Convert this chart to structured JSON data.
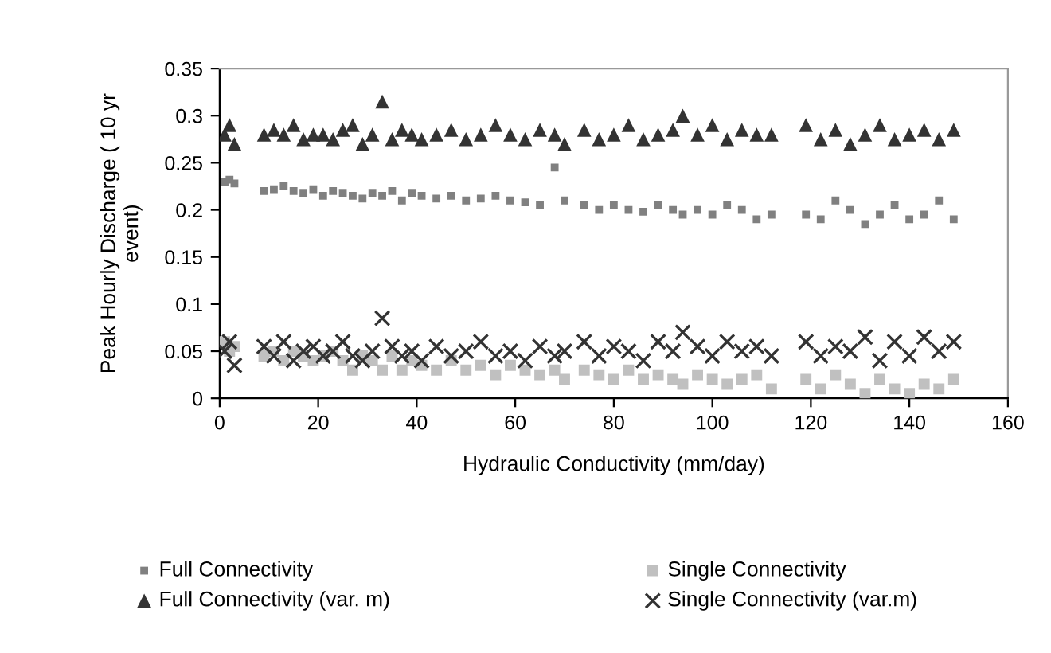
{
  "chart_data": {
    "type": "scatter",
    "xlabel": "Hydraulic Conductivity (mm/day)",
    "ylabel": "Peak Hourly Discharge ( 10 yr\nevent)",
    "x": [
      1,
      2,
      3,
      9,
      11,
      13,
      15,
      17,
      19,
      21,
      23,
      25,
      27,
      29,
      31,
      33,
      35,
      37,
      39,
      41,
      44,
      47,
      50,
      53,
      56,
      59,
      62,
      65,
      68,
      70,
      74,
      77,
      80,
      83,
      86,
      89,
      92,
      94,
      97,
      100,
      103,
      106,
      109,
      112,
      119,
      122,
      125,
      128,
      131,
      134,
      137,
      140,
      143,
      146,
      149
    ],
    "series": [
      {
        "name": "Full Connectivity",
        "color": "#808080",
        "marker": "square",
        "values": [
          0.23,
          0.232,
          0.228,
          0.22,
          0.222,
          0.225,
          0.22,
          0.218,
          0.222,
          0.215,
          0.22,
          0.218,
          0.215,
          0.212,
          0.218,
          0.215,
          0.22,
          0.21,
          0.218,
          0.215,
          0.212,
          0.215,
          0.21,
          0.212,
          0.215,
          0.21,
          0.208,
          0.205,
          0.245,
          0.21,
          0.205,
          0.2,
          0.205,
          0.2,
          0.198,
          0.205,
          0.2,
          0.195,
          0.2,
          0.195,
          0.205,
          0.2,
          0.19,
          0.195,
          0.195,
          0.19,
          0.21,
          0.2,
          0.185,
          0.195,
          0.205,
          0.19,
          0.195,
          0.21,
          0.19
        ]
      },
      {
        "name": "Single Connectivity",
        "color": "#c0c0c0",
        "marker": "square",
        "values": [
          0.06,
          0.05,
          0.055,
          0.045,
          0.05,
          0.04,
          0.05,
          0.045,
          0.04,
          0.045,
          0.05,
          0.04,
          0.03,
          0.045,
          0.04,
          0.03,
          0.045,
          0.03,
          0.04,
          0.035,
          0.03,
          0.04,
          0.03,
          0.035,
          0.025,
          0.035,
          0.03,
          0.025,
          0.03,
          0.02,
          0.03,
          0.025,
          0.02,
          0.03,
          0.02,
          0.025,
          0.02,
          0.015,
          0.025,
          0.02,
          0.015,
          0.02,
          0.025,
          0.01,
          0.02,
          0.01,
          0.025,
          0.015,
          0.005,
          0.02,
          0.01,
          0.005,
          0.015,
          0.01,
          0.02
        ]
      },
      {
        "name": "Full Connectivity (var. m)",
        "color": "#333333",
        "marker": "triangle",
        "values": [
          0.28,
          0.29,
          0.27,
          0.28,
          0.285,
          0.28,
          0.29,
          0.275,
          0.28,
          0.28,
          0.275,
          0.285,
          0.29,
          0.27,
          0.28,
          0.315,
          0.275,
          0.285,
          0.28,
          0.275,
          0.28,
          0.285,
          0.275,
          0.28,
          0.29,
          0.28,
          0.275,
          0.285,
          0.28,
          0.27,
          0.285,
          0.275,
          0.28,
          0.29,
          0.275,
          0.28,
          0.285,
          0.3,
          0.28,
          0.29,
          0.275,
          0.285,
          0.28,
          0.28,
          0.29,
          0.275,
          0.285,
          0.27,
          0.28,
          0.29,
          0.275,
          0.28,
          0.285,
          0.275,
          0.285
        ]
      },
      {
        "name": "Single Connectivity (var.m)",
        "color": "#333333",
        "marker": "cross",
        "values": [
          0.05,
          0.06,
          0.035,
          0.055,
          0.045,
          0.06,
          0.04,
          0.05,
          0.055,
          0.045,
          0.05,
          0.06,
          0.045,
          0.04,
          0.05,
          0.085,
          0.055,
          0.045,
          0.05,
          0.04,
          0.055,
          0.045,
          0.05,
          0.06,
          0.045,
          0.05,
          0.04,
          0.055,
          0.045,
          0.05,
          0.06,
          0.045,
          0.055,
          0.05,
          0.04,
          0.06,
          0.05,
          0.07,
          0.055,
          0.045,
          0.06,
          0.05,
          0.055,
          0.045,
          0.06,
          0.045,
          0.055,
          0.05,
          0.065,
          0.04,
          0.06,
          0.045,
          0.065,
          0.05,
          0.06
        ]
      }
    ],
    "xlim": [
      0,
      160
    ],
    "xticks": [
      0,
      20,
      40,
      60,
      80,
      100,
      120,
      140,
      160
    ],
    "ylim": [
      0,
      0.35
    ],
    "yticks": [
      0,
      0.05,
      0.1,
      0.15,
      0.2,
      0.25,
      0.3,
      0.35
    ],
    "grid": false,
    "legend": "bottom"
  }
}
